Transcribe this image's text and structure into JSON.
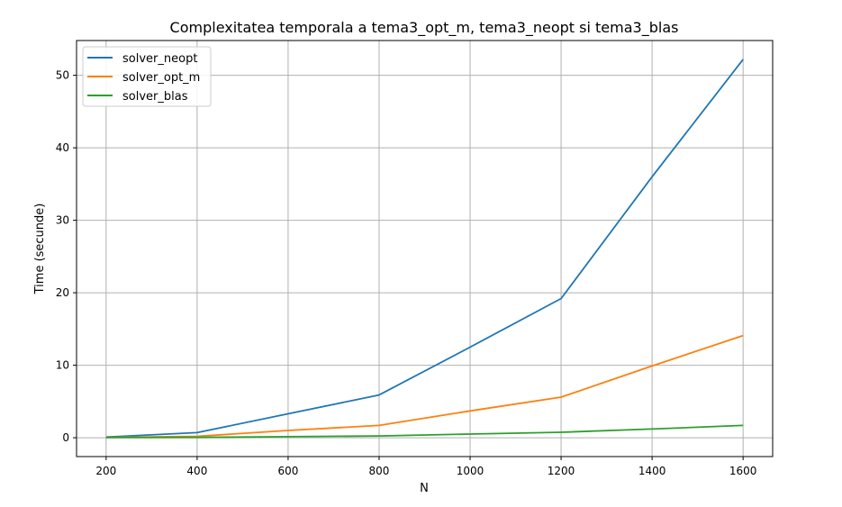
{
  "chart_data": {
    "type": "line",
    "title": "Complexitatea temporala a tema3_opt_m, tema3_neopt si tema3_blas",
    "xlabel": "N",
    "ylabel": "Time (secunde)",
    "x": [
      200,
      400,
      600,
      800,
      1000,
      1200,
      1400,
      1600
    ],
    "xticks": [
      "200",
      "400",
      "600",
      "800",
      "1000",
      "1200",
      "1400",
      "1600"
    ],
    "yticks": [
      "0",
      "10",
      "20",
      "30",
      "40",
      "50"
    ],
    "xlim": [
      135,
      1665
    ],
    "ylim": [
      -2.6,
      54.8
    ],
    "grid": true,
    "legend_position": "top-left",
    "series": [
      {
        "name": "solver_neopt",
        "color": "#1f77b4",
        "values": [
          0.1,
          0.7,
          3.3,
          5.9,
          12.5,
          19.2,
          36.0,
          52.2
        ]
      },
      {
        "name": "solver_opt_m",
        "color": "#ff7f0e",
        "values": [
          0.05,
          0.2,
          1.0,
          1.7,
          3.7,
          5.6,
          9.9,
          14.1
        ]
      },
      {
        "name": "solver_blas",
        "color": "#2ca02c",
        "values": [
          0.02,
          0.05,
          0.15,
          0.25,
          0.5,
          0.75,
          1.2,
          1.7
        ]
      }
    ]
  }
}
